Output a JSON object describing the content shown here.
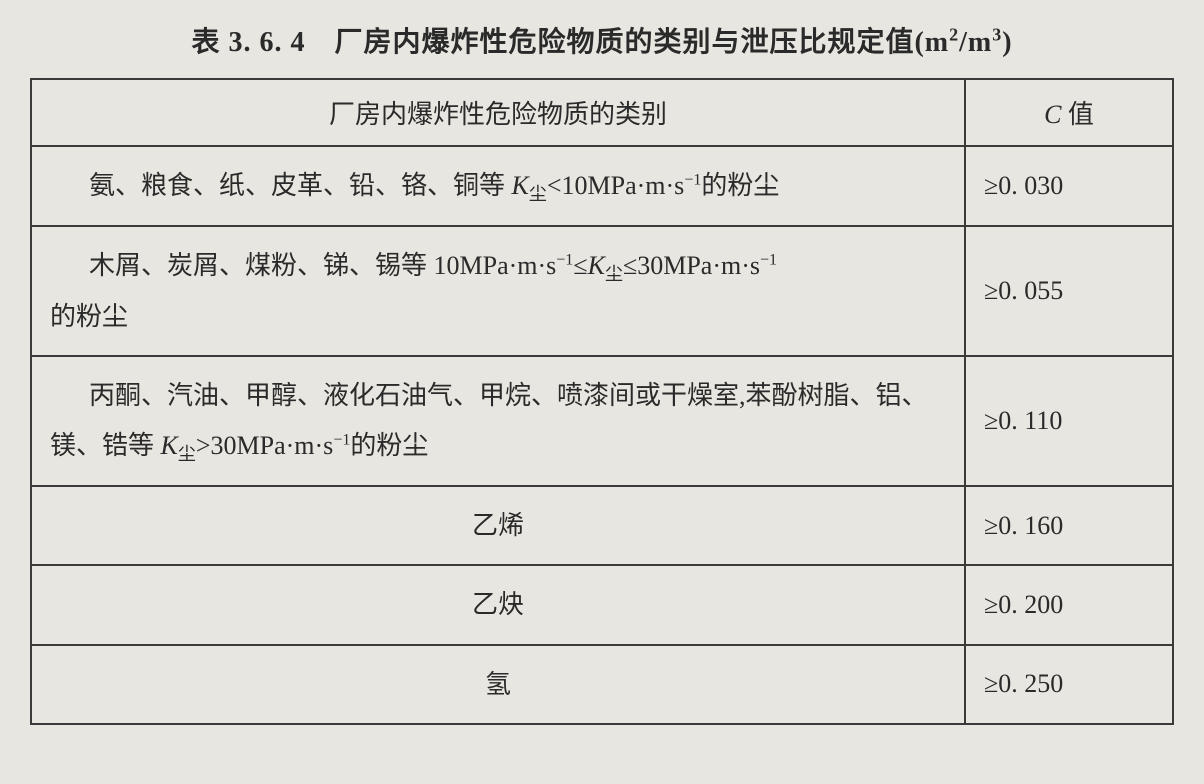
{
  "title_prefix": "表 3. 6. 4　厂房内爆炸性危险物质的类别与泄压比规定值(m",
  "title_sup1": "2",
  "title_mid": "/m",
  "title_sup2": "3",
  "title_suffix": ")",
  "header": {
    "col1": "厂房内爆炸性危险物质的类别",
    "col2_c": "C ",
    "col2_cn": "值"
  },
  "rows": [
    {
      "row1_t1": "氨、粮食、纸、皮革、铅、铬、铜等 ",
      "row1_k": "K",
      "row1_sub": "尘",
      "row1_t2": "<10MPa·m·s",
      "row1_sup": "−1",
      "row1_t3": "的粉尘",
      "c_ge": "≥",
      "c_val": "0. 030"
    },
    {
      "row2_t1": "木屑、炭屑、煤粉、锑、锡等 10MPa·m·s",
      "row2_sup1": "−1",
      "row2_le": "≤",
      "row2_k": "K",
      "row2_sub": "尘",
      "row2_le2": "≤",
      "row2_t2": "30MPa·m·s",
      "row2_sup2": "−1",
      "row2_br": "的粉尘",
      "c_ge": "≥",
      "c_val": "0. 055"
    },
    {
      "row3_t1": "丙酮、汽油、甲醇、液化石油气、甲烷、喷漆间或干燥室,苯酚树脂、铝、镁、锆等 ",
      "row3_k": "K",
      "row3_sub": "尘",
      "row3_t2": ">30MPa·m·s",
      "row3_sup": "−1",
      "row3_t3": "的粉尘",
      "c_ge": "≥",
      "c_val": "0. 110"
    },
    {
      "row4_cat": "乙烯",
      "c_ge": "≥",
      "c_val": "0. 160"
    },
    {
      "row5_cat": "乙炔",
      "c_ge": "≥",
      "c_val": "0. 200"
    },
    {
      "row6_cat": "氢",
      "c_ge": "≥",
      "c_val": "0. 250"
    }
  ]
}
